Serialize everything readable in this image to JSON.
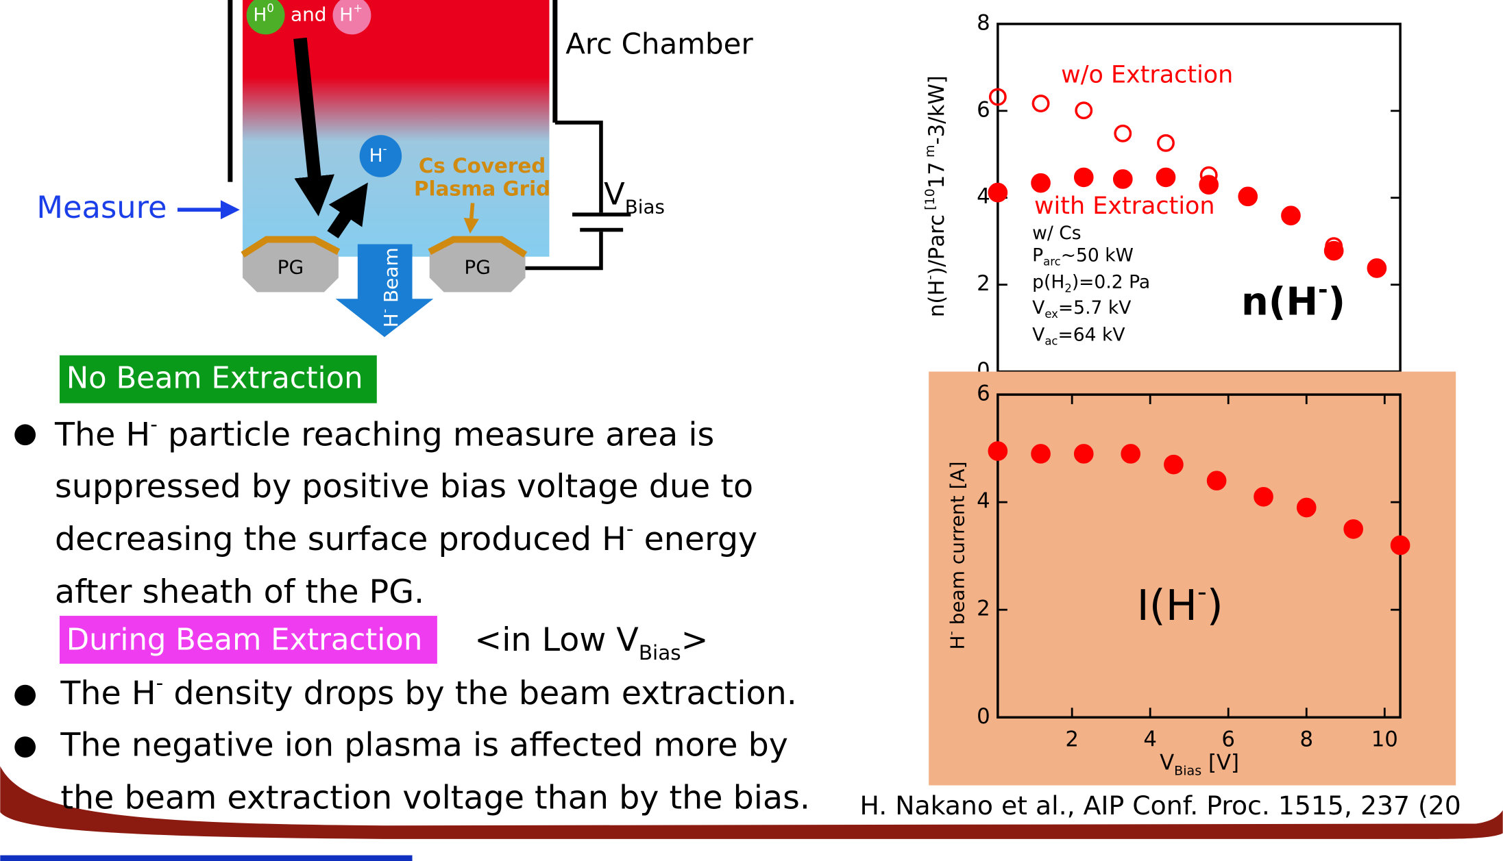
{
  "diagram": {
    "h0": [
      "H",
      "0"
    ],
    "and": "and",
    "hplus": [
      "H",
      "+"
    ],
    "hminus": [
      "H",
      "-"
    ],
    "cs_grid": [
      "Cs Covered",
      "Plasma Grid"
    ],
    "arc_chamber": "Arc Chamber",
    "vbias": [
      "V",
      "Bias"
    ],
    "measure": "Measure",
    "pg_left": "PG",
    "pg_right": "PG",
    "beam": [
      "H",
      "-",
      " Beam"
    ]
  },
  "no_beam": {
    "heading": "No Beam Extraction",
    "lines": [
      [
        "The H",
        "-",
        " particle reaching measure area is"
      ],
      [
        "suppressed by positive bias voltage due to"
      ],
      [
        "decreasing the surface produced H",
        "-",
        " energy"
      ],
      [
        "after sheath of the PG."
      ]
    ]
  },
  "during_beam": {
    "heading": "During Beam Extraction",
    "note": [
      "<in Low V",
      "Bias",
      ">"
    ],
    "bullets": [
      [
        [
          "The H",
          "-",
          " density drops by the beam extraction."
        ]
      ],
      [
        [
          "The negative ion plasma is affected more by"
        ],
        [
          "the beam extraction voltage than by the bias."
        ]
      ]
    ]
  },
  "citation": "H. Nakano et al., AIP Conf. Proc. 1515, 237 (20",
  "chart_data": [
    {
      "type": "scatter",
      "ylabel": [
        "n(H",
        "-",
        ")/P",
        "arc",
        " [10",
        "17",
        " m",
        "-3",
        "/kW]"
      ],
      "xlim": [
        0.1,
        10.4
      ],
      "ylim": [
        0,
        8
      ],
      "yticks": [
        0,
        2,
        4,
        6,
        8
      ],
      "label": [
        "n(H",
        "-",
        ")"
      ],
      "conditions": [
        [
          "w/ Cs"
        ],
        [
          "P",
          "arc",
          "~50 kW"
        ],
        [
          "p(H",
          "2",
          ")=0.2 Pa"
        ],
        [
          "V",
          "ex",
          "=5.7 kV"
        ],
        [
          "V",
          "ac",
          "=64 kV"
        ]
      ],
      "series": [
        {
          "name": "w/o Extraction",
          "color": "#ff0000",
          "marker": "open",
          "x": [
            0.1,
            1.2,
            2.3,
            3.3,
            4.4,
            5.5,
            6.5,
            7.6,
            8.7,
            9.8
          ],
          "values": [
            6.32,
            6.17,
            6.01,
            5.48,
            5.26,
            4.52,
            4.03,
            3.59,
            2.89,
            2.38
          ]
        },
        {
          "name": "with Extraction",
          "color": "#ff0000",
          "marker": "filled",
          "x": [
            0.1,
            1.2,
            2.3,
            3.3,
            4.4,
            5.5,
            6.5,
            7.6,
            8.7,
            9.8
          ],
          "values": [
            4.12,
            4.34,
            4.47,
            4.43,
            4.47,
            4.3,
            4.03,
            3.59,
            2.78,
            2.38
          ]
        }
      ]
    },
    {
      "type": "scatter",
      "ylabel": [
        "H",
        "-",
        " beam current [A]"
      ],
      "xlabel": [
        "V",
        "Bias",
        " [V]"
      ],
      "xlim": [
        0.1,
        10.4
      ],
      "ylim": [
        0,
        6
      ],
      "xticks": [
        2,
        4,
        6,
        8,
        10
      ],
      "yticks": [
        0,
        2,
        4,
        6
      ],
      "label": [
        "I(H",
        "-",
        ")"
      ],
      "series": [
        {
          "color": "#ff0000",
          "marker": "filled",
          "x": [
            0.1,
            1.2,
            2.3,
            3.5,
            4.6,
            5.7,
            6.9,
            8.0,
            9.2,
            10.4
          ],
          "values": [
            4.95,
            4.9,
            4.9,
            4.9,
            4.7,
            4.4,
            4.1,
            3.9,
            3.5,
            3.2
          ]
        }
      ]
    }
  ]
}
